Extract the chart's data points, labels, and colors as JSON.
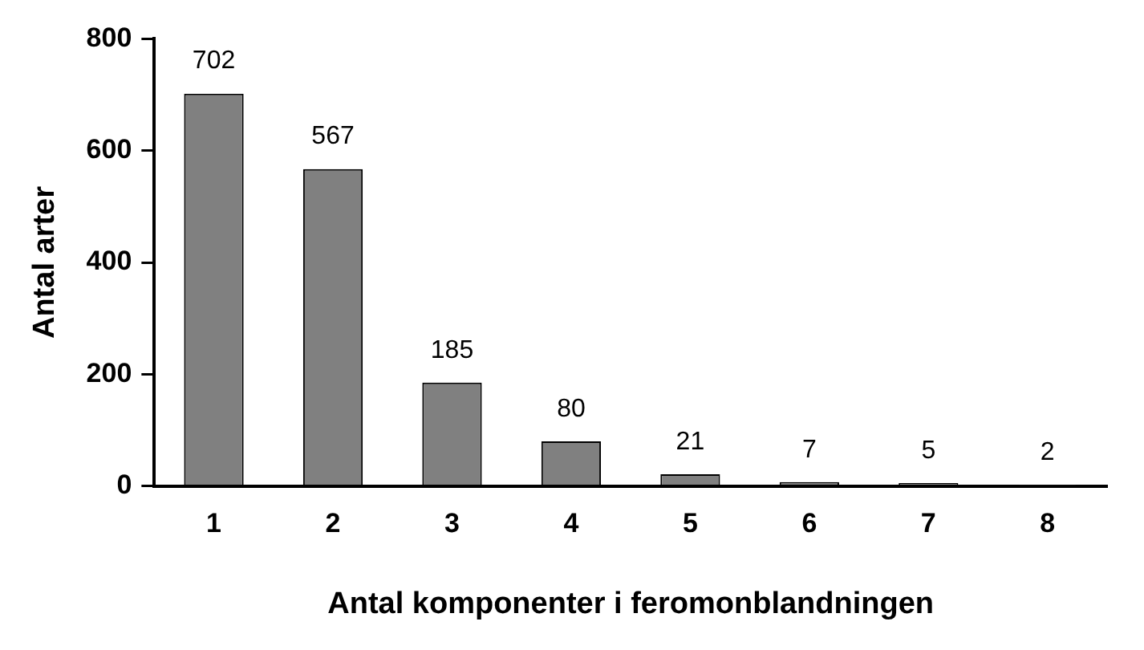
{
  "chart_data": {
    "type": "bar",
    "xlabel": "Antal komponenter i feromonblandningen",
    "ylabel": "Antal arter",
    "categories": [
      "1",
      "2",
      "3",
      "4",
      "5",
      "6",
      "7",
      "8"
    ],
    "values": [
      702,
      567,
      185,
      80,
      21,
      7,
      5,
      2
    ],
    "color": "#808080",
    "ylim": [
      0,
      800
    ],
    "yticks": [
      0,
      200,
      400,
      600,
      800
    ],
    "grid": false,
    "legend": false,
    "data_labels": true
  }
}
